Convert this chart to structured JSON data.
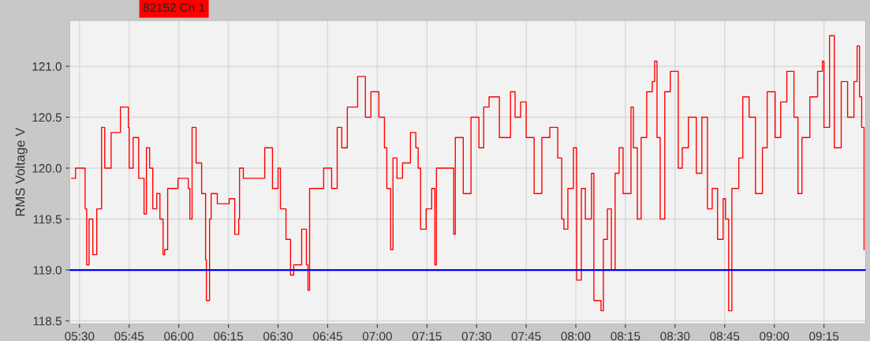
{
  "chart_data": {
    "type": "step",
    "ylabel": "RMS Voltage V",
    "xlim": [
      5.45,
      9.46
    ],
    "ylim": [
      118.47,
      121.45
    ],
    "xticks": [
      {
        "value": 5.5,
        "label": "05:30"
      },
      {
        "value": 5.75,
        "label": "05:45"
      },
      {
        "value": 6.0,
        "label": "06:00"
      },
      {
        "value": 6.25,
        "label": "06:15"
      },
      {
        "value": 6.5,
        "label": "06:30"
      },
      {
        "value": 6.75,
        "label": "06:45"
      },
      {
        "value": 7.0,
        "label": "07:00"
      },
      {
        "value": 7.25,
        "label": "07:15"
      },
      {
        "value": 7.5,
        "label": "07:30"
      },
      {
        "value": 7.75,
        "label": "07:45"
      },
      {
        "value": 8.0,
        "label": "08:00"
      },
      {
        "value": 8.25,
        "label": "08:15"
      },
      {
        "value": 8.5,
        "label": "08:30"
      },
      {
        "value": 8.75,
        "label": "08:45"
      },
      {
        "value": 9.0,
        "label": "09:00"
      },
      {
        "value": 9.25,
        "label": "09:15"
      }
    ],
    "yticks": [
      {
        "value": 118.5,
        "label": "118.5"
      },
      {
        "value": 119.0,
        "label": "119.0"
      },
      {
        "value": 119.5,
        "label": "119.5"
      },
      {
        "value": 120.0,
        "label": "120.0"
      },
      {
        "value": 120.5,
        "label": "120.5"
      },
      {
        "value": 121.0,
        "label": "121.0"
      }
    ],
    "grid": true,
    "legend": "top",
    "marker": "none",
    "line_style": "solid",
    "ref_lines": [
      {
        "axis": "y",
        "value": 119.0,
        "color": "#0000ff"
      }
    ],
    "series": [
      {
        "name": "82152 Ch 1",
        "color": "#ff0000",
        "x": [
          5.46,
          5.48,
          5.512,
          5.528,
          5.536,
          5.548,
          5.567,
          5.587,
          5.611,
          5.627,
          5.659,
          5.706,
          5.746,
          5.75,
          5.77,
          5.798,
          5.825,
          5.837,
          5.853,
          5.869,
          5.889,
          5.905,
          5.921,
          5.929,
          5.944,
          5.996,
          6.048,
          6.056,
          6.067,
          6.087,
          6.115,
          6.135,
          6.139,
          6.155,
          6.163,
          6.194,
          6.254,
          6.282,
          6.302,
          6.306,
          6.325,
          6.373,
          6.433,
          6.472,
          6.5,
          6.512,
          6.54,
          6.563,
          6.579,
          6.619,
          6.643,
          6.651,
          6.659,
          6.73,
          6.77,
          6.798,
          6.821,
          6.849,
          6.901,
          6.94,
          6.968,
          7.008,
          7.036,
          7.048,
          7.067,
          7.079,
          7.099,
          7.127,
          7.167,
          7.194,
          7.206,
          7.218,
          7.246,
          7.274,
          7.29,
          7.298,
          7.345,
          7.385,
          7.393,
          7.433,
          7.472,
          7.512,
          7.536,
          7.563,
          7.603,
          7.615,
          7.671,
          7.694,
          7.722,
          7.75,
          7.79,
          7.829,
          7.869,
          7.909,
          7.929,
          7.94,
          7.96,
          7.988,
          8.004,
          8.028,
          8.048,
          8.079,
          8.091,
          8.107,
          8.127,
          8.139,
          8.159,
          8.179,
          8.198,
          8.218,
          8.238,
          8.278,
          8.29,
          8.31,
          8.329,
          8.357,
          8.385,
          8.397,
          8.409,
          8.425,
          8.448,
          8.476,
          8.504,
          8.516,
          8.536,
          8.567,
          8.607,
          8.635,
          8.663,
          8.687,
          8.714,
          8.742,
          8.754,
          8.77,
          8.786,
          8.821,
          8.841,
          8.873,
          8.905,
          8.94,
          8.964,
          9.004,
          9.032,
          9.063,
          9.099,
          9.119,
          9.139,
          9.179,
          9.218,
          9.242,
          9.25,
          9.278,
          9.302,
          9.337,
          9.369,
          9.401,
          9.417,
          9.429,
          9.44,
          9.452
        ],
        "values": [
          119.9,
          120.0,
          120.0,
          119.6,
          119.05,
          119.5,
          119.15,
          119.6,
          120.4,
          120.0,
          120.35,
          120.6,
          120.4,
          120.0,
          120.3,
          119.9,
          119.55,
          120.2,
          120.0,
          119.6,
          119.75,
          119.5,
          119.15,
          119.2,
          119.8,
          119.9,
          119.8,
          119.5,
          120.4,
          120.05,
          119.75,
          119.1,
          118.7,
          119.5,
          119.75,
          119.65,
          119.7,
          119.35,
          119.5,
          120.0,
          119.9,
          119.9,
          120.2,
          119.8,
          120.0,
          119.6,
          119.3,
          118.95,
          119.05,
          119.4,
          119.05,
          118.8,
          119.8,
          120.0,
          119.8,
          120.4,
          120.2,
          120.6,
          120.9,
          120.5,
          120.75,
          120.5,
          120.2,
          119.8,
          119.2,
          120.1,
          119.9,
          120.05,
          120.35,
          120.2,
          120.0,
          119.4,
          119.6,
          119.8,
          119.05,
          120.0,
          120.0,
          119.35,
          120.3,
          119.75,
          120.5,
          120.2,
          120.6,
          120.7,
          120.7,
          120.3,
          120.75,
          120.5,
          120.65,
          120.3,
          119.75,
          120.3,
          120.4,
          120.1,
          119.5,
          119.4,
          119.8,
          120.2,
          118.9,
          119.8,
          119.5,
          119.95,
          118.7,
          118.7,
          118.6,
          119.3,
          119.6,
          119.0,
          119.95,
          120.2,
          119.75,
          120.6,
          120.2,
          119.5,
          120.3,
          120.75,
          120.85,
          121.05,
          120.3,
          119.5,
          120.75,
          120.95,
          120.95,
          120.0,
          120.2,
          120.5,
          119.95,
          120.5,
          119.6,
          119.8,
          119.3,
          119.7,
          119.5,
          118.6,
          119.8,
          120.1,
          120.7,
          120.5,
          119.75,
          120.2,
          120.75,
          120.3,
          120.65,
          120.95,
          120.5,
          119.75,
          120.3,
          120.7,
          120.95,
          121.05,
          120.4,
          121.3,
          120.2,
          120.85,
          120.5,
          120.85,
          121.2,
          120.7,
          120.4,
          119.2
        ]
      }
    ]
  }
}
